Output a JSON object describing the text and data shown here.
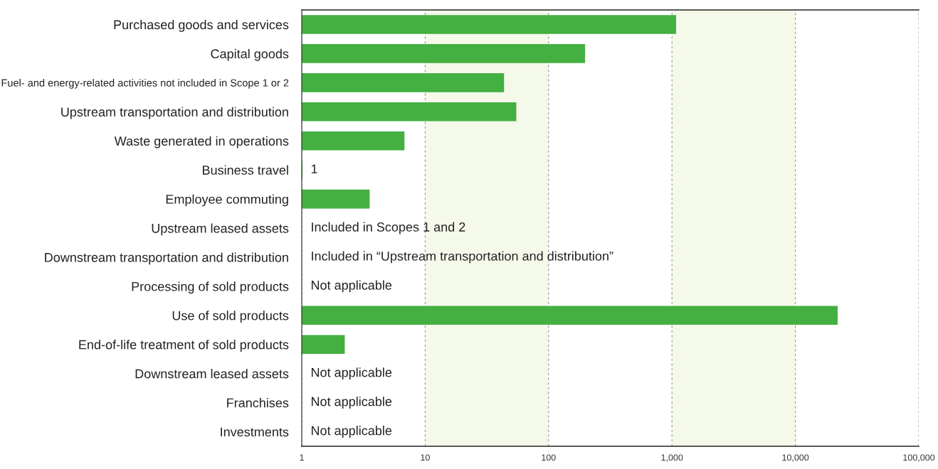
{
  "chart_data": {
    "type": "bar",
    "orientation": "horizontal",
    "log": "x",
    "categories": [
      "Purchased goods and services",
      "Capital goods",
      "Fuel- and energy-related activities not included in Scope 1 or 2",
      "Upstream transportation and distribution",
      "Waste generated in operations",
      "Business travel",
      "Employee commuting",
      "Upstream leased assets",
      "Downstream transportation and distribution",
      "Processing of sold products",
      "Use of sold products",
      "End-of-life treatment of sold products",
      "Downstream leased assets",
      "Franchises",
      "Investments"
    ],
    "values": [
      1065,
      195,
      43,
      54,
      6.7,
      1,
      3.5,
      null,
      null,
      null,
      21700,
      2.2,
      null,
      null,
      null
    ],
    "value_labels": [
      null,
      null,
      null,
      null,
      null,
      "1",
      null,
      "Included in Scopes 1 and 2",
      "Included in “Upstream transportation and distribution”",
      "Not applicable",
      null,
      null,
      "Not applicable",
      "Not applicable",
      "Not applicable"
    ],
    "color": "#43b041",
    "xlim": [
      1,
      100000
    ],
    "xticks": [
      1,
      10,
      100,
      {
        "value": 1000,
        "label": "1,000"
      },
      {
        "value": 10000,
        "label": "10,000"
      },
      {
        "value": 100000,
        "label": "100,000"
      }
    ],
    "grid": "x",
    "bands": [
      {
        "axis": "x",
        "from": 10,
        "to": 100,
        "color": "#f5f9ea"
      },
      {
        "axis": "x",
        "from": 1000,
        "to": 10000,
        "color": "#f5f9ea"
      }
    ]
  }
}
